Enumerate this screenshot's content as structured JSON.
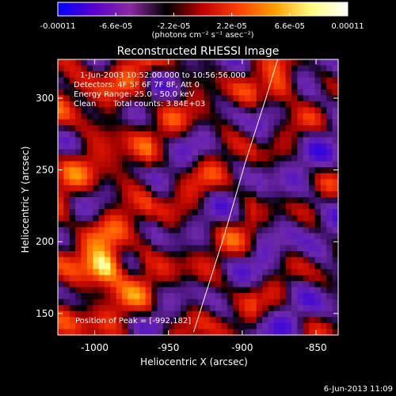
{
  "chart_data": {
    "type": "heatmap",
    "title": "Reconstructed RHESSI Image",
    "xlabel": "Heliocentric X (arcsec)",
    "ylabel": "Heliocentric Y (arcsec)",
    "xlim": [
      -1025,
      -835
    ],
    "ylim": [
      135,
      327
    ],
    "x_ticks": [
      "-1000",
      "-950",
      "-900",
      "-850"
    ],
    "x_tick_values": [
      -1000,
      -950,
      -900,
      -850
    ],
    "y_ticks": [
      "150",
      "200",
      "250",
      "300"
    ],
    "y_tick_values": [
      150,
      200,
      250,
      300
    ],
    "colorbar": {
      "range": [
        -0.00011,
        0.00011
      ],
      "tick_labels": [
        "-0.00011",
        "-6.6e-05",
        "-2.2e-05",
        "2.2e-05",
        "6.6e-05",
        "0.00011"
      ],
      "tick_values": [
        -0.00011,
        -6.6e-05,
        -2.2e-05,
        2.2e-05,
        6.6e-05,
        0.00011
      ],
      "unit_label": "(photons cm⁻² s⁻¹ asec⁻²)",
      "colors": [
        "#0000ff",
        "#5a00d0",
        "#8a2aa0",
        "#000000",
        "#c00000",
        "#ff4000",
        "#ffa000",
        "#ffff80",
        "#ffffff"
      ]
    },
    "annotations": {
      "time_range": "1-Jun-2003 10:52:00.000 to 10:56:56.000",
      "detectors": "Detectors: 4F 5F 6F 7F 8F, Att 0",
      "energy_range": "Energy Range: 25.0 - 50.0 keV",
      "clean_label": "Clean",
      "total_counts": "Total counts: 3.84E+03",
      "peak": "Position of Peak = [-992,182]"
    },
    "limb": {
      "points": [
        [
          -933,
          137
        ],
        [
          -912,
          205
        ],
        [
          -898,
          255
        ],
        [
          -884,
          300
        ],
        [
          -876,
          327
        ]
      ]
    },
    "peaks": [
      {
        "x": -992,
        "y": 182,
        "value": 0.00011
      },
      {
        "x": -873,
        "y": 306,
        "value": 9e-05
      }
    ],
    "footer_date": "6-Jun-2013 11:09"
  }
}
